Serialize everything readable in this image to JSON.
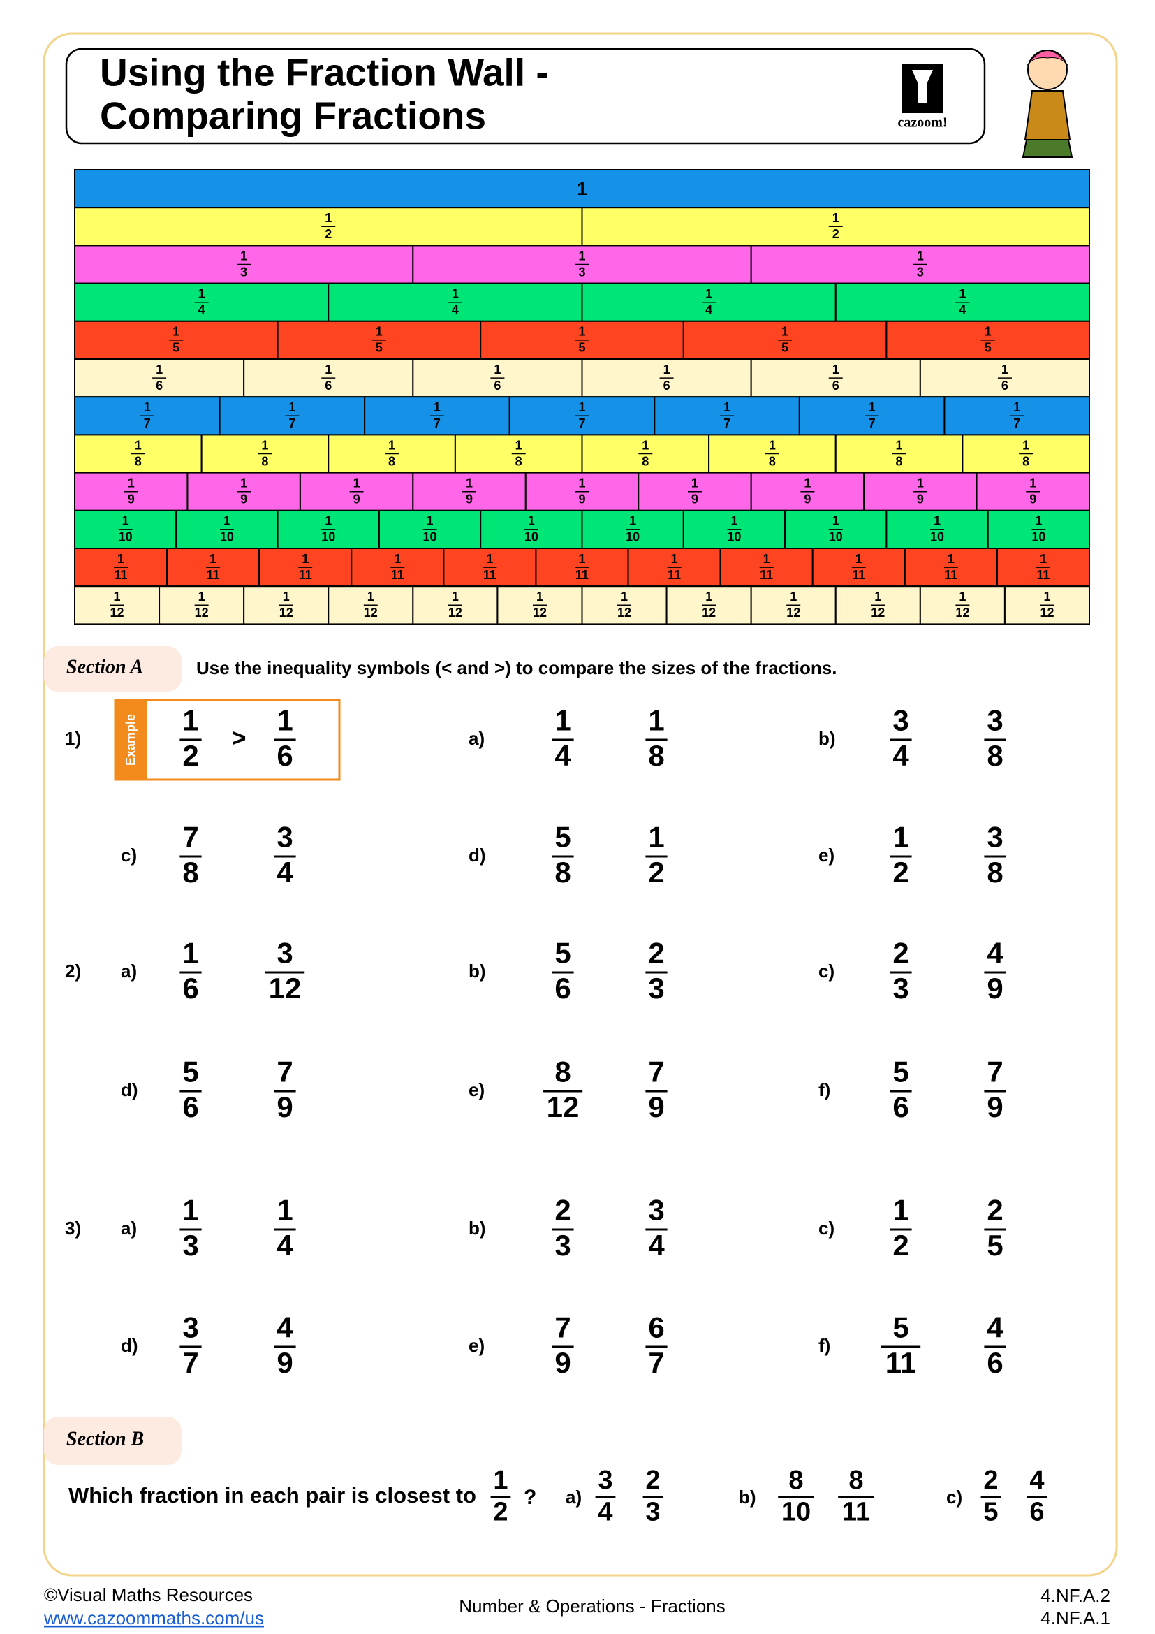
{
  "header": {
    "title_lines": [
      "Using the Fraction Wall -",
      "Comparing Fractions"
    ],
    "logo": "cazoom!"
  },
  "fraction_wall": {
    "rows": [
      {
        "label": "1",
        "color": "#1591e8"
      },
      {
        "numerator": "1",
        "denominator": "2",
        "color": "#ffff66"
      },
      {
        "numerator": "1",
        "denominator": "3",
        "color": "#ff66e8"
      },
      {
        "numerator": "1",
        "denominator": "4",
        "color": "#00e676"
      },
      {
        "numerator": "1",
        "denominator": "5",
        "color": "#ff4422"
      },
      {
        "numerator": "1",
        "denominator": "6",
        "color": "#fff6cc"
      },
      {
        "numerator": "1",
        "denominator": "7",
        "color": "#1591e8"
      },
      {
        "numerator": "1",
        "denominator": "8",
        "color": "#ffff66"
      },
      {
        "numerator": "1",
        "denominator": "9",
        "color": "#ff66e8"
      },
      {
        "numerator": "1",
        "denominator": "10",
        "color": "#00e676"
      },
      {
        "numerator": "1",
        "denominator": "11",
        "color": "#ff4422"
      },
      {
        "numerator": "1",
        "denominator": "12",
        "color": "#fff6cc"
      }
    ]
  },
  "section_a": {
    "label": "Section A",
    "instruction": "Use the inequality symbols (< and >) to compare the sizes of the fractions.",
    "groups": [
      {
        "number": "1)",
        "items": [
          {
            "label": "Example",
            "left": {
              "n": "1",
              "d": "2"
            },
            "symbol": ">",
            "right": {
              "n": "1",
              "d": "6"
            }
          },
          {
            "label": "a)",
            "left": {
              "n": "1",
              "d": "4"
            },
            "right": {
              "n": "1",
              "d": "8"
            }
          },
          {
            "label": "b)",
            "left": {
              "n": "3",
              "d": "4"
            },
            "right": {
              "n": "3",
              "d": "8"
            }
          },
          {
            "label": "c)",
            "left": {
              "n": "7",
              "d": "8"
            },
            "right": {
              "n": "3",
              "d": "4"
            }
          },
          {
            "label": "d)",
            "left": {
              "n": "5",
              "d": "8"
            },
            "right": {
              "n": "1",
              "d": "2"
            }
          },
          {
            "label": "e)",
            "left": {
              "n": "1",
              "d": "2"
            },
            "right": {
              "n": "3",
              "d": "8"
            }
          }
        ]
      },
      {
        "number": "2)",
        "items": [
          {
            "label": "a)",
            "left": {
              "n": "1",
              "d": "6"
            },
            "right": {
              "n": "3",
              "d": "12"
            }
          },
          {
            "label": "b)",
            "left": {
              "n": "5",
              "d": "6"
            },
            "right": {
              "n": "2",
              "d": "3"
            }
          },
          {
            "label": "c)",
            "left": {
              "n": "2",
              "d": "3"
            },
            "right": {
              "n": "4",
              "d": "9"
            }
          },
          {
            "label": "d)",
            "left": {
              "n": "5",
              "d": "6"
            },
            "right": {
              "n": "7",
              "d": "9"
            }
          },
          {
            "label": "e)",
            "left": {
              "n": "8",
              "d": "12"
            },
            "right": {
              "n": "7",
              "d": "9"
            }
          },
          {
            "label": "f)",
            "left": {
              "n": "5",
              "d": "6"
            },
            "right": {
              "n": "7",
              "d": "9"
            }
          }
        ]
      },
      {
        "number": "3)",
        "items": [
          {
            "label": "a)",
            "left": {
              "n": "1",
              "d": "3"
            },
            "right": {
              "n": "1",
              "d": "4"
            }
          },
          {
            "label": "b)",
            "left": {
              "n": "2",
              "d": "3"
            },
            "right": {
              "n": "3",
              "d": "4"
            }
          },
          {
            "label": "c)",
            "left": {
              "n": "1",
              "d": "2"
            },
            "right": {
              "n": "2",
              "d": "5"
            }
          },
          {
            "label": "d)",
            "left": {
              "n": "3",
              "d": "7"
            },
            "right": {
              "n": "4",
              "d": "9"
            }
          },
          {
            "label": "e)",
            "left": {
              "n": "7",
              "d": "9"
            },
            "right": {
              "n": "6",
              "d": "7"
            }
          },
          {
            "label": "f)",
            "left": {
              "n": "5",
              "d": "11"
            },
            "right": {
              "n": "4",
              "d": "6"
            }
          }
        ]
      }
    ]
  },
  "section_b": {
    "label": "Section B",
    "question": "Which fraction in each pair is closest to",
    "target": {
      "n": "1",
      "d": "2"
    },
    "question_mark": "?",
    "items": [
      {
        "label": "a)",
        "left": {
          "n": "3",
          "d": "4"
        },
        "right": {
          "n": "2",
          "d": "3"
        }
      },
      {
        "label": "b)",
        "left": {
          "n": "8",
          "d": "10"
        },
        "right": {
          "n": "8",
          "d": "11"
        }
      },
      {
        "label": "c)",
        "left": {
          "n": "2",
          "d": "5"
        },
        "right": {
          "n": "4",
          "d": "6"
        }
      }
    ]
  },
  "footer": {
    "copyright": "©Visual Maths Resources",
    "url": "www.cazoommaths.com/us",
    "topic": "Number & Operations - Fractions",
    "standards": [
      "4.NF.A.2",
      "4.NF.A.1"
    ]
  }
}
